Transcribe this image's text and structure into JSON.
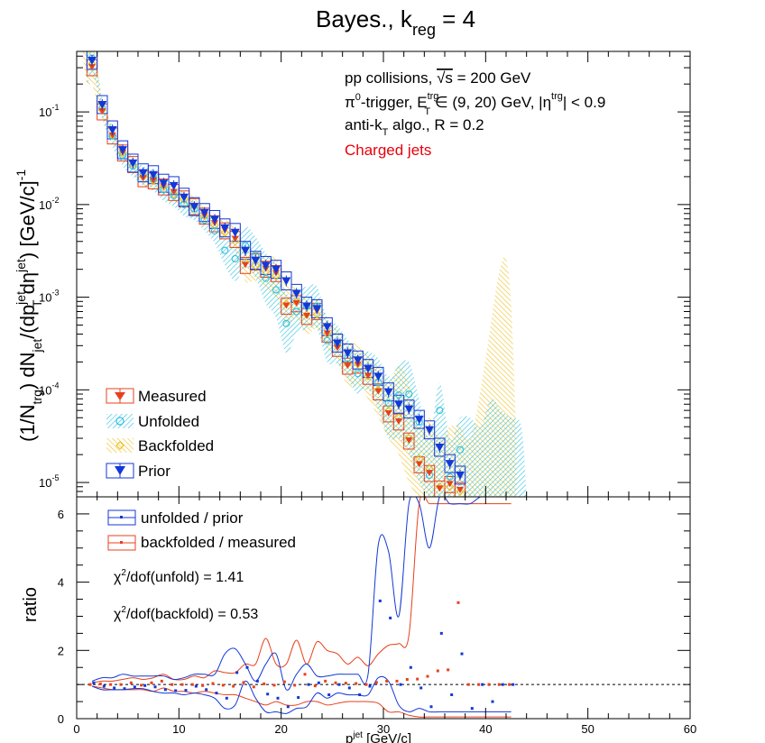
{
  "figure": {
    "title_main": "Bayes., k",
    "title_sub": "reg",
    "title_tail": " = 4"
  },
  "top_panel": {
    "ylabel_parts": [
      "(1/N",
      "trg",
      ") dN",
      "jet",
      "/(dp",
      "jet",
      "T",
      " dη",
      "jet",
      ") [GeV/c]",
      "-1"
    ],
    "yscale": "log",
    "ylim": [
      7e-06,
      0.45
    ],
    "y_ticks": [
      {
        "mant": "10",
        "exp": "-5",
        "value": 1e-05
      },
      {
        "mant": "10",
        "exp": "-4",
        "value": 0.0001
      },
      {
        "mant": "10",
        "exp": "-3",
        "value": 0.001
      },
      {
        "mant": "10",
        "exp": "-2",
        "value": 0.01
      },
      {
        "mant": "10",
        "exp": "-1",
        "value": 0.1
      }
    ],
    "annotations": {
      "line1_a": "pp collisions, ",
      "line1_sqrt": "√s",
      "line1_b": " = 200 GeV",
      "line2_a": "π",
      "line2_sup0": "0",
      "line2_b": "-trigger, E",
      "line2_supT": "trg",
      "line2_subT": "T",
      "line2_c": " ∈ (9, 20) GeV, |η",
      "line2_supEta": "trg",
      "line2_d": "| < 0.9",
      "line3_a": "anti-k",
      "line3_sub": "T",
      "line3_b": " algo., R = 0.2",
      "line4": "Charged jets"
    },
    "legend": [
      {
        "label": "Measured"
      },
      {
        "label": "Unfolded"
      },
      {
        "label": "Backfolded"
      },
      {
        "label": "Prior"
      }
    ]
  },
  "bottom_panel": {
    "ylabel": "ratio",
    "ylim": [
      0,
      6.5
    ],
    "y_ticks": [
      "0",
      "2",
      "4",
      "6"
    ],
    "legend": [
      {
        "label": "unfolded / prior"
      },
      {
        "label": "backfolded / measured"
      }
    ],
    "chi2_unfold_a": "χ",
    "chi2_unfold_sup": "2",
    "chi2_unfold_b": "/dof(unfold) = 1.41",
    "chi2_backfold_a": "χ",
    "chi2_backfold_sup": "2",
    "chi2_backfold_b": "/dof(backfold) = 0.53"
  },
  "x_axis": {
    "label_a": "p",
    "label_sup": "jet",
    "label_b": " [GeV/c]",
    "xlim": [
      0,
      60
    ],
    "x_ticks": [
      "0",
      "10",
      "20",
      "30",
      "40",
      "50",
      "60"
    ]
  },
  "colors": {
    "measured": "#e8401c",
    "unfolded": "#2cc0e0",
    "backfolded": "#f0c020",
    "prior": "#1238d8",
    "charged_jets_text": "#e8000b"
  },
  "chart_data": {
    "type": "scatter",
    "x": [
      1.5,
      2.5,
      3.5,
      4.5,
      5.5,
      6.5,
      7.5,
      8.5,
      9.5,
      10.5,
      11.5,
      12.5,
      13.5,
      14.5,
      15.5,
      16.5,
      17.5,
      18.5,
      19.5,
      20.5,
      21.5,
      22.5,
      23.5,
      24.5,
      25.5,
      26.5,
      27.5,
      28.5,
      29.5,
      30.5,
      31.5,
      32.5,
      33.5,
      34.5,
      35.5,
      36.5,
      37.5
    ],
    "series": [
      {
        "name": "Measured",
        "values": [
          0.3,
          0.1,
          0.055,
          0.036,
          0.027,
          0.019,
          0.018,
          0.0155,
          0.0135,
          0.0115,
          0.0095,
          0.0075,
          0.0062,
          0.0052,
          0.0042,
          0.0022,
          0.0024,
          0.002,
          0.0018,
          0.0008,
          0.00085,
          0.00062,
          0.0007,
          0.0004,
          0.00028,
          0.00018,
          0.000185,
          0.00014,
          9.5e-05,
          5.5e-05,
          4.5e-05,
          2.8e-05,
          1.55e-05,
          1.25e-05,
          8.5e-06,
          9.5e-06,
          8.2e-06
        ]
      },
      {
        "name": "Unfolded",
        "values": [
          0.38,
          0.11,
          0.055,
          0.034,
          0.026,
          0.021,
          0.019,
          0.0145,
          0.0125,
          0.01,
          0.009,
          0.0068,
          0.0052,
          0.0032,
          0.0026,
          0.0036,
          0.0028,
          0.0016,
          0.0012,
          0.00052,
          0.0007,
          0.0008,
          0.0008,
          0.00034,
          0.00032,
          0.00022,
          0.00015,
          0.00016,
          0.00012,
          7.2e-05,
          8.8e-05,
          9e-05,
          4.5e-05,
          1.2e-05,
          6e-05,
          1.15e-05,
          2.25e-05
        ]
      },
      {
        "name": "Backfolded",
        "values": [
          0.33,
          0.105,
          0.056,
          0.036,
          0.027,
          0.02,
          0.018,
          0.0155,
          0.013,
          0.0115,
          0.0096,
          0.0075,
          0.006,
          0.005,
          0.004,
          0.0024,
          0.0022,
          0.0019,
          0.0017,
          0.00085,
          0.0009,
          0.00065,
          0.00065,
          0.0004,
          0.0003,
          0.00019,
          0.00019,
          0.00014,
          0.0001,
          6e-05,
          5e-05,
          3e-05,
          1.8e-05,
          1.4e-05,
          9e-06,
          9e-06,
          8e-06
        ]
      },
      {
        "name": "Prior",
        "values": [
          0.36,
          0.12,
          0.064,
          0.039,
          0.028,
          0.022,
          0.021,
          0.017,
          0.016,
          0.012,
          0.0095,
          0.0082,
          0.0069,
          0.0056,
          0.005,
          0.0032,
          0.0025,
          0.0022,
          0.002,
          0.0015,
          0.0011,
          0.0008,
          0.00075,
          0.00048,
          0.00032,
          0.00025,
          0.00021,
          0.00017,
          0.00014,
          9.5e-05,
          7e-05,
          6.2e-05,
          4.8e-05,
          3.7e-05,
          2.4e-05,
          1.6e-05,
          1.2e-05
        ]
      }
    ],
    "backfolded_band_x": [
      0.5,
      1.0,
      1.5,
      2.0,
      2.5,
      3.5,
      4.5,
      5.5,
      6.5,
      7.5,
      8.5,
      9.5,
      10.5,
      11.5,
      12.5,
      13.5,
      14.5,
      15.5,
      16.5,
      17.5,
      18.5,
      19.5,
      20.5,
      21.5,
      22.5,
      23.5,
      24.5,
      25.5,
      26.5,
      27.5,
      28.5,
      29.5,
      30.5,
      31.5,
      32.5,
      33.5,
      34.5,
      35.5,
      36.5,
      37.5,
      38.5,
      39.5,
      40.5,
      41.0,
      41.5,
      42.0,
      42.5,
      43.0
    ],
    "backfolded_band_high": [
      0.5,
      0.5,
      0.5,
      0.35,
      0.14,
      0.068,
      0.043,
      0.032,
      0.024,
      0.022,
      0.018,
      0.016,
      0.014,
      0.012,
      0.0095,
      0.0078,
      0.0068,
      0.0058,
      0.0036,
      0.0032,
      0.0028,
      0.0026,
      0.0014,
      0.0013,
      0.00095,
      0.00095,
      0.0006,
      0.00045,
      0.00032,
      0.00032,
      0.00024,
      0.00018,
      0.00012,
      0.00018,
      0.00012,
      4e-05,
      5e-05,
      3e-05,
      4e-05,
      4e-05,
      3e-05,
      0.0001,
      0.0005,
      0.0012,
      0.0022,
      0.0026,
      0.0008,
      3e-05
    ],
    "backfolded_band_low": [
      0.5,
      0.2,
      0.2,
      0.12,
      0.085,
      0.046,
      0.03,
      0.022,
      0.016,
      0.015,
      0.013,
      0.011,
      0.0095,
      0.0078,
      0.0062,
      0.005,
      0.0042,
      0.0032,
      0.0015,
      0.0015,
      0.0012,
      0.001,
      0.0005,
      0.0006,
      0.0004,
      0.00045,
      0.00028,
      0.0002,
      0.00011,
      0.00011,
      8e-05,
      5e-05,
      3e-05,
      2e-05,
      1e-05,
      7e-06,
      7e-06,
      7e-06,
      7e-06,
      7e-06,
      7e-06,
      7e-06,
      7e-06,
      7e-06,
      7e-06,
      7e-06,
      7e-06,
      7e-06
    ],
    "unfolded_band_x": [
      1.0,
      1.5,
      2.0,
      2.5,
      3.5,
      4.5,
      5.5,
      6.5,
      7.5,
      8.5,
      9.5,
      10.5,
      11.5,
      12.5,
      13.5,
      14.5,
      15.5,
      16.5,
      17.5,
      18.5,
      19.5,
      20.5,
      21.5,
      22.5,
      23.5,
      24.5,
      25.5,
      26.5,
      27.5,
      28.5,
      29.5,
      30.5,
      31.5,
      32.5,
      33.5,
      34.5,
      35.5,
      36.5,
      37.5,
      38.5,
      39.5,
      40.5,
      41.5,
      42.5,
      43.5,
      44.0
    ],
    "unfolded_band_high": [
      0.5,
      0.5,
      0.3,
      0.14,
      0.07,
      0.042,
      0.031,
      0.026,
      0.024,
      0.018,
      0.016,
      0.013,
      0.011,
      0.0085,
      0.0065,
      0.0045,
      0.0042,
      0.0058,
      0.0045,
      0.003,
      0.0023,
      0.0011,
      0.0012,
      0.0013,
      0.0013,
      0.0006,
      0.0005,
      0.00035,
      0.00026,
      0.00026,
      0.00022,
      0.00014,
      0.00018,
      0.0002,
      8e-05,
      3e-05,
      0.00012,
      3e-05,
      5e-05,
      5e-05,
      4e-05,
      8e-05,
      6e-05,
      5e-05,
      4e-05,
      7e-06
    ],
    "unfolded_band_low": [
      0.2,
      0.25,
      0.18,
      0.085,
      0.042,
      0.026,
      0.02,
      0.016,
      0.014,
      0.011,
      0.0095,
      0.0075,
      0.0068,
      0.0052,
      0.0038,
      0.0022,
      0.0015,
      0.0021,
      0.0016,
      0.00085,
      0.0006,
      0.00025,
      0.0004,
      0.00045,
      0.00045,
      0.0002,
      0.00019,
      0.00013,
      9e-05,
      0.0001,
      6e-05,
      3e-05,
      3e-05,
      2e-05,
      1e-05,
      7e-06,
      7e-06,
      7e-06,
      7e-06,
      7e-06,
      7e-06,
      7e-06,
      7e-06,
      7e-06,
      7e-06,
      7e-06
    ],
    "ratio": {
      "x": [
        1.5,
        2.5,
        3.5,
        4.5,
        5.5,
        6.5,
        7.5,
        8.5,
        9.5,
        10.5,
        11.5,
        12.5,
        13.5,
        14.5,
        15.5,
        16.5,
        17.5,
        18.5,
        19.5,
        20.5,
        21.5,
        22.5,
        23.5,
        24.5,
        25.5,
        26.5,
        27.5,
        28.5,
        29.5,
        30.5,
        31.5,
        32.5,
        33.5,
        34.5,
        35.5,
        36.5,
        37.5,
        38.5,
        39.5,
        40.5,
        41.5,
        42.5
      ],
      "unfolded_over_prior": [
        1.05,
        0.95,
        0.9,
        0.88,
        0.93,
        0.97,
        0.93,
        0.85,
        0.82,
        0.83,
        0.95,
        0.85,
        0.75,
        0.6,
        1.35,
        1.5,
        1.1,
        0.72,
        0.6,
        0.35,
        0.62,
        1.0,
        1.05,
        0.7,
        1.0,
        0.9,
        0.7,
        0.95,
        3.45,
        2.95,
        1.0,
        1.5,
        0.9,
        0.35,
        2.5,
        0.7,
        1.9,
        0.3,
        1.0,
        0.5,
        1.0,
        1.0
      ],
      "backfolded_over_measured": [
        1.0,
        1.02,
        1.0,
        1.0,
        1.05,
        0.98,
        1.05,
        1.1,
        1.0,
        1.0,
        1.0,
        0.97,
        1.03,
        0.98,
        0.95,
        1.06,
        0.93,
        1.02,
        0.98,
        1.08,
        0.98,
        1.3,
        0.96,
        1.1,
        1.05,
        1.04,
        1.03,
        1.0,
        1.06,
        1.1,
        1.1,
        1.15,
        1.16,
        1.24,
        1.4,
        1.43,
        3.4,
        1.0,
        1.0,
        1.0,
        1.0,
        1.0
      ],
      "unfolded_band_high": [
        1.1,
        1.2,
        1.2,
        1.3,
        1.25,
        1.25,
        1.25,
        1.25,
        1.15,
        1.2,
        1.3,
        1.3,
        1.3,
        1.9,
        2.05,
        1.6,
        1.1,
        1.6,
        1.9,
        0.85,
        1.3,
        1.6,
        1.25,
        1.25,
        1.3,
        1.3,
        1.3,
        1.3,
        5.1,
        4.9,
        3.0,
        6.3,
        6.3,
        5.0,
        6.5,
        6.3,
        6.3,
        6.3,
        6.5,
        6.5,
        6.5,
        6.5
      ],
      "unfolded_band_low": [
        0.95,
        0.85,
        0.85,
        0.85,
        0.88,
        0.88,
        0.8,
        0.75,
        0.75,
        0.7,
        0.75,
        0.7,
        0.6,
        0.3,
        0.4,
        1.1,
        0.6,
        0.2,
        0.2,
        0.15,
        0.3,
        0.35,
        0.75,
        0.6,
        0.75,
        0.7,
        0.7,
        0.7,
        1.2,
        1.1,
        0.4,
        0.2,
        0.3,
        0.2,
        0.2,
        0.2,
        0.2,
        0.2,
        0.2,
        0.2,
        0.2,
        0.2
      ],
      "backfolded_band_high": [
        1.05,
        1.1,
        1.1,
        1.15,
        1.2,
        1.15,
        1.2,
        1.3,
        1.15,
        1.15,
        1.25,
        1.2,
        1.4,
        1.35,
        1.35,
        1.6,
        1.6,
        2.35,
        1.6,
        1.6,
        2.3,
        1.6,
        2.25,
        2.0,
        1.9,
        1.6,
        1.8,
        1.55,
        1.9,
        2.15,
        2.2,
        2.45,
        6.3,
        6.3,
        6.3,
        6.3,
        6.3,
        6.3,
        6.3,
        6.3,
        6.3,
        6.3
      ],
      "backfolded_band_low": [
        0.95,
        0.9,
        0.85,
        0.85,
        0.85,
        0.85,
        0.8,
        0.9,
        0.8,
        0.8,
        0.75,
        0.8,
        0.75,
        0.7,
        0.7,
        0.6,
        0.5,
        0.4,
        0.5,
        0.4,
        0.4,
        0.5,
        0.5,
        0.4,
        0.45,
        0.5,
        0.5,
        0.5,
        0.45,
        0.2,
        0.2,
        0.1,
        0.05,
        0.05,
        0.05,
        0.05,
        0.05,
        0.05,
        0.05,
        0.05,
        0.05,
        0.05
      ],
      "reference_line": 1.0
    }
  }
}
